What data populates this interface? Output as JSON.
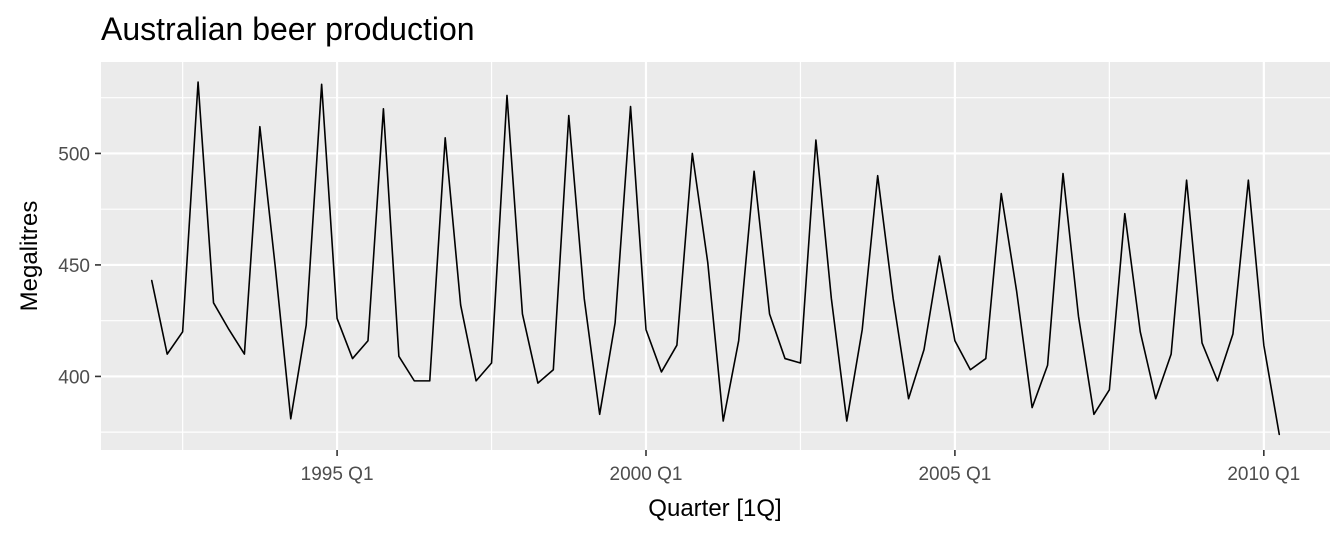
{
  "chart_data": {
    "type": "line",
    "title": "Australian beer production",
    "xlabel": "Quarter [1Q]",
    "ylabel": "Megalitres",
    "x_start": "1992 Q1",
    "frequency": "quarterly",
    "x_ticks": [
      "1995 Q1",
      "2000 Q1",
      "2005 Q1",
      "2010 Q1"
    ],
    "y_ticks": [
      400,
      450,
      500
    ],
    "ylim": [
      367,
      541
    ],
    "grid": true,
    "series": [
      {
        "x": [
          "1992 Q1",
          "1992 Q2",
          "1992 Q3",
          "1992 Q4",
          "1993 Q1",
          "1993 Q2",
          "1993 Q3",
          "1993 Q4",
          "1994 Q1",
          "1994 Q2",
          "1994 Q3",
          "1994 Q4",
          "1995 Q1",
          "1995 Q2",
          "1995 Q3",
          "1995 Q4",
          "1996 Q1",
          "1996 Q2",
          "1996 Q3",
          "1996 Q4",
          "1997 Q1",
          "1997 Q2",
          "1997 Q3",
          "1997 Q4",
          "1998 Q1",
          "1998 Q2",
          "1998 Q3",
          "1998 Q4",
          "1999 Q1",
          "1999 Q2",
          "1999 Q3",
          "1999 Q4",
          "2000 Q1",
          "2000 Q2",
          "2000 Q3",
          "2000 Q4",
          "2001 Q1",
          "2001 Q2",
          "2001 Q3",
          "2001 Q4",
          "2002 Q1",
          "2002 Q2",
          "2002 Q3",
          "2002 Q4",
          "2003 Q1",
          "2003 Q2",
          "2003 Q3",
          "2003 Q4",
          "2004 Q1",
          "2004 Q2",
          "2004 Q3",
          "2004 Q4",
          "2005 Q1",
          "2005 Q2",
          "2005 Q3",
          "2005 Q4",
          "2006 Q1",
          "2006 Q2",
          "2006 Q3",
          "2006 Q4",
          "2007 Q1",
          "2007 Q2",
          "2007 Q3",
          "2007 Q4",
          "2008 Q1",
          "2008 Q2",
          "2008 Q3",
          "2008 Q4",
          "2009 Q1",
          "2009 Q2",
          "2009 Q3",
          "2009 Q4",
          "2010 Q1",
          "2010 Q2"
        ],
        "values": [
          443,
          410,
          420,
          532,
          433,
          421,
          410,
          512,
          449,
          381,
          423,
          531,
          426,
          408,
          416,
          520,
          409,
          398,
          398,
          507,
          432,
          398,
          406,
          526,
          428,
          397,
          403,
          517,
          435,
          383,
          424,
          521,
          421,
          402,
          414,
          500,
          451,
          380,
          416,
          492,
          428,
          408,
          406,
          506,
          435,
          380,
          421,
          490,
          435,
          390,
          412,
          454,
          416,
          403,
          408,
          482,
          438,
          386,
          405,
          491,
          427,
          383,
          394,
          473,
          420,
          390,
          410,
          488,
          415,
          398,
          419,
          488,
          414,
          374
        ]
      }
    ]
  }
}
